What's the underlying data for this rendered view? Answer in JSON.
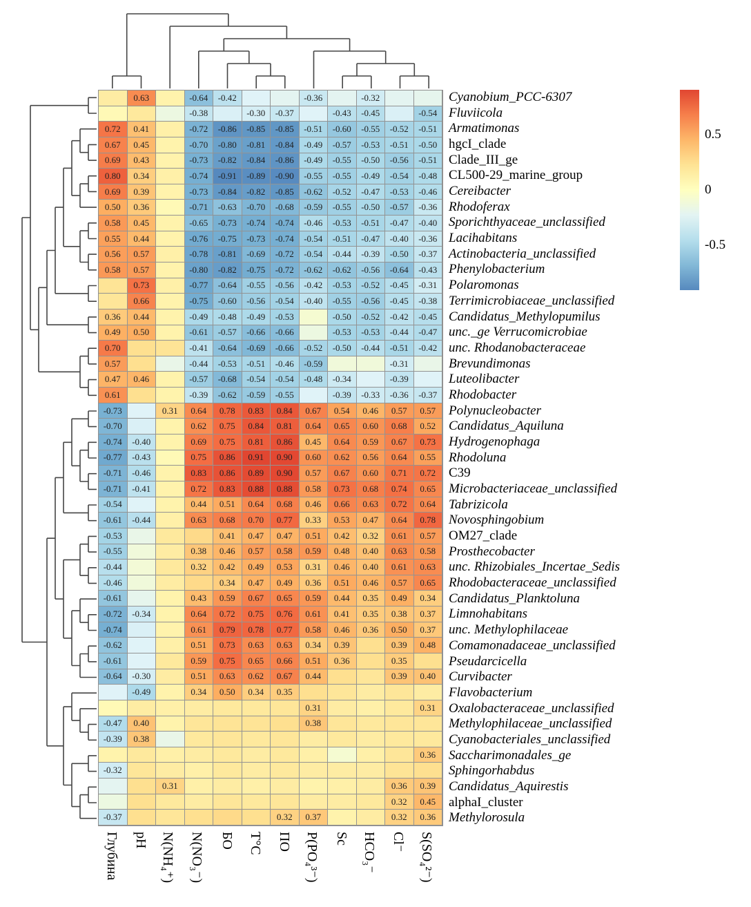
{
  "figure": {
    "background": "#ffffff",
    "blank_cells_note": "cells without printed numbers are non-significant; matrix holds approximate values used only for cell color"
  },
  "legend": {
    "vmax": 0.91,
    "vmin": -0.91,
    "ticks": [
      {
        "label": "0.5",
        "value": 0.5
      },
      {
        "label": "0",
        "value": 0
      },
      {
        "label": "-0.5",
        "value": -0.5
      }
    ]
  },
  "chart_data": {
    "type": "heatmap",
    "title": "",
    "display_threshold": 0.3,
    "colormap": {
      "stops": [
        "#d73027",
        "#f46d43",
        "#fdae61",
        "#fee090",
        "#ffffbf",
        "#e0f3f8",
        "#abd9e9",
        "#74add1",
        "#4575b4"
      ],
      "domain": [
        1,
        -1
      ]
    },
    "columns": [
      "Глубина",
      "pH",
      "N(NH₄⁺)",
      "N(NO₃⁻)",
      "БО",
      "T°C",
      "ПО",
      "P(PO₄³⁻)",
      "Sc",
      "HCO₃⁻",
      "Cl⁻",
      "S(SO₄²⁻)"
    ],
    "rows": [
      {
        "label": "Cyanobium_PCC-6307",
        "italic": true
      },
      {
        "label": "Fluviicola",
        "italic": true
      },
      {
        "label": "Armatimonas",
        "italic": true
      },
      {
        "label": "hgcI_clade",
        "italic": false
      },
      {
        "label": "Clade_III_ge",
        "italic": false
      },
      {
        "label": "CL500-29_marine_group",
        "italic": false
      },
      {
        "label": "Cereibacter",
        "italic": true
      },
      {
        "label": "Rhodoferax",
        "italic": true
      },
      {
        "label": "Sporichthyaceae_unclassified",
        "italic": true
      },
      {
        "label": "Lacihabitans",
        "italic": true
      },
      {
        "label": "Actinobacteria_unclassified",
        "italic": true
      },
      {
        "label": "Phenylobacterium",
        "italic": true
      },
      {
        "label": "Polaromonas",
        "italic": true
      },
      {
        "label": "Terrimicrobiaceae_unclassified",
        "italic": true
      },
      {
        "label": "Candidatus_Methylopumilus",
        "italic": true
      },
      {
        "label": "unc._ge Verrucomicrobiae",
        "italic": true
      },
      {
        "label": "unc. Rhodanobacteraceae",
        "italic": true
      },
      {
        "label": "Brevundimonas",
        "italic": true
      },
      {
        "label": "Luteolibacter",
        "italic": true
      },
      {
        "label": "Rhodobacter",
        "italic": true
      },
      {
        "label": "Polynucleobacter",
        "italic": true
      },
      {
        "label": "Candidatus_Aquiluna",
        "italic": true
      },
      {
        "label": "Hydrogenophaga",
        "italic": true
      },
      {
        "label": "Rhodoluna",
        "italic": true
      },
      {
        "label": "C39",
        "italic": false
      },
      {
        "label": "Microbacteriaceae_unclassified",
        "italic": true
      },
      {
        "label": "Tabrizicola",
        "italic": true
      },
      {
        "label": "Novosphingobium",
        "italic": true
      },
      {
        "label": "OM27_clade",
        "italic": false
      },
      {
        "label": "Prosthecobacter",
        "italic": true
      },
      {
        "label": "unc. Rhizobiales_Incertae_Sedis",
        "italic": true
      },
      {
        "label": "Rhodobacteraceae_unclassified",
        "italic": true
      },
      {
        "label": "Candidatus_Planktoluna",
        "italic": true
      },
      {
        "label": "Limnohabitans",
        "italic": true
      },
      {
        "label": "unc. Methylophilaceae",
        "italic": true
      },
      {
        "label": "Comamonadaceae_unclassified",
        "italic": true
      },
      {
        "label": "Pseudarcicella",
        "italic": true
      },
      {
        "label": "Curvibacter",
        "italic": true
      },
      {
        "label": "Flavobacterium",
        "italic": true
      },
      {
        "label": "Oxalobacteraceae_unclassified",
        "italic": true
      },
      {
        "label": "Methylophilaceae_unclassified",
        "italic": true
      },
      {
        "label": "Cyanobacteriales_unclassified",
        "italic": true
      },
      {
        "label": "Saccharimonadales_ge",
        "italic": true
      },
      {
        "label": "Sphingorhabdus",
        "italic": true
      },
      {
        "label": "Candidatus_Aquirestis",
        "italic": true
      },
      {
        "label": "alphaI_cluster",
        "italic": false
      },
      {
        "label": "Methylorosula",
        "italic": true
      }
    ],
    "values": [
      [
        0.15,
        0.63,
        0.1,
        -0.64,
        -0.42,
        -0.25,
        -0.22,
        -0.36,
        -0.22,
        -0.32,
        -0.22,
        -0.2
      ],
      [
        0.05,
        0.18,
        -0.15,
        -0.38,
        -0.28,
        -0.3,
        -0.37,
        -0.25,
        -0.43,
        -0.45,
        -0.28,
        -0.54
      ],
      [
        0.72,
        0.41,
        0.12,
        -0.72,
        -0.86,
        -0.85,
        -0.85,
        -0.51,
        -0.6,
        -0.55,
        -0.52,
        -0.51
      ],
      [
        0.67,
        0.45,
        0.1,
        -0.7,
        -0.8,
        -0.81,
        -0.84,
        -0.49,
        -0.57,
        -0.53,
        -0.51,
        -0.5
      ],
      [
        0.69,
        0.43,
        0.1,
        -0.73,
        -0.82,
        -0.84,
        -0.86,
        -0.49,
        -0.55,
        -0.5,
        -0.56,
        -0.51
      ],
      [
        0.8,
        0.34,
        0.12,
        -0.74,
        -0.91,
        -0.89,
        -0.9,
        -0.55,
        -0.55,
        -0.49,
        -0.54,
        -0.48
      ],
      [
        0.69,
        0.39,
        0.1,
        -0.73,
        -0.84,
        -0.82,
        -0.85,
        -0.62,
        -0.52,
        -0.47,
        -0.53,
        -0.46
      ],
      [
        0.5,
        0.36,
        0.05,
        -0.71,
        -0.63,
        -0.7,
        -0.68,
        -0.59,
        -0.55,
        -0.5,
        -0.57,
        -0.36
      ],
      [
        0.58,
        0.45,
        0.1,
        -0.65,
        -0.73,
        -0.74,
        -0.74,
        -0.46,
        -0.53,
        -0.51,
        -0.47,
        -0.4
      ],
      [
        0.55,
        0.44,
        0.1,
        -0.76,
        -0.75,
        -0.73,
        -0.74,
        -0.54,
        -0.51,
        -0.47,
        -0.4,
        -0.36
      ],
      [
        0.56,
        0.57,
        0.12,
        -0.78,
        -0.81,
        -0.69,
        -0.72,
        -0.54,
        -0.44,
        -0.39,
        -0.5,
        -0.37
      ],
      [
        0.58,
        0.57,
        0.1,
        -0.8,
        -0.82,
        -0.75,
        -0.72,
        -0.62,
        -0.62,
        -0.56,
        -0.64,
        -0.43
      ],
      [
        0.22,
        0.73,
        0.12,
        -0.77,
        -0.64,
        -0.55,
        -0.56,
        -0.42,
        -0.53,
        -0.52,
        -0.45,
        -0.31
      ],
      [
        0.2,
        0.66,
        0.1,
        -0.75,
        -0.6,
        -0.56,
        -0.54,
        -0.4,
        -0.55,
        -0.56,
        -0.45,
        -0.38
      ],
      [
        0.36,
        0.44,
        0.1,
        -0.49,
        -0.48,
        -0.49,
        -0.53,
        -0.08,
        -0.5,
        -0.52,
        -0.42,
        -0.45
      ],
      [
        0.49,
        0.5,
        0.1,
        -0.61,
        -0.57,
        -0.66,
        -0.66,
        -0.15,
        -0.53,
        -0.53,
        -0.44,
        -0.47
      ],
      [
        0.7,
        0.25,
        0.22,
        -0.41,
        -0.64,
        -0.69,
        -0.66,
        -0.52,
        -0.5,
        -0.44,
        -0.51,
        -0.42
      ],
      [
        0.57,
        0.25,
        -0.18,
        -0.44,
        -0.53,
        -0.51,
        -0.46,
        -0.59,
        -0.12,
        -0.12,
        -0.31,
        -0.18
      ],
      [
        0.47,
        0.46,
        0.1,
        -0.57,
        -0.68,
        -0.54,
        -0.54,
        -0.48,
        -0.34,
        -0.25,
        -0.39,
        -0.25
      ],
      [
        0.61,
        0.25,
        0.1,
        -0.39,
        -0.62,
        -0.59,
        -0.55,
        -0.25,
        -0.39,
        -0.33,
        -0.36,
        -0.37
      ],
      [
        -0.73,
        -0.25,
        0.31,
        0.64,
        0.78,
        0.83,
        0.84,
        0.67,
        0.54,
        0.46,
        0.57,
        0.57
      ],
      [
        -0.7,
        -0.28,
        0.1,
        0.62,
        0.75,
        0.84,
        0.81,
        0.64,
        0.65,
        0.6,
        0.68,
        0.52
      ],
      [
        -0.74,
        -0.4,
        0.1,
        0.69,
        0.75,
        0.81,
        0.86,
        0.45,
        0.64,
        0.59,
        0.67,
        0.73
      ],
      [
        -0.77,
        -0.43,
        0.05,
        0.75,
        0.86,
        0.91,
        0.9,
        0.6,
        0.62,
        0.56,
        0.64,
        0.55
      ],
      [
        -0.71,
        -0.46,
        0.1,
        0.83,
        0.86,
        0.89,
        0.9,
        0.57,
        0.67,
        0.6,
        0.71,
        0.72
      ],
      [
        -0.71,
        -0.41,
        0.1,
        0.72,
        0.83,
        0.88,
        0.88,
        0.58,
        0.73,
        0.68,
        0.74,
        0.65
      ],
      [
        -0.54,
        -0.25,
        0.1,
        0.44,
        0.51,
        0.64,
        0.68,
        0.46,
        0.66,
        0.63,
        0.72,
        0.64
      ],
      [
        -0.61,
        -0.44,
        0.12,
        0.63,
        0.68,
        0.7,
        0.77,
        0.33,
        0.53,
        0.47,
        0.64,
        0.78
      ],
      [
        -0.53,
        -0.18,
        0.18,
        0.28,
        0.41,
        0.47,
        0.47,
        0.51,
        0.42,
        0.32,
        0.61,
        0.57
      ],
      [
        -0.55,
        -0.12,
        0.15,
        0.38,
        0.46,
        0.57,
        0.58,
        0.59,
        0.48,
        0.4,
        0.63,
        0.58
      ],
      [
        -0.44,
        -0.1,
        0.18,
        0.32,
        0.42,
        0.49,
        0.53,
        0.31,
        0.46,
        0.4,
        0.61,
        0.63
      ],
      [
        -0.46,
        -0.12,
        0.15,
        0.28,
        0.34,
        0.47,
        0.49,
        0.36,
        0.51,
        0.46,
        0.57,
        0.65
      ],
      [
        -0.61,
        -0.2,
        0.1,
        0.43,
        0.59,
        0.67,
        0.65,
        0.59,
        0.44,
        0.35,
        0.49,
        0.34
      ],
      [
        -0.72,
        -0.34,
        0.1,
        0.64,
        0.72,
        0.75,
        0.76,
        0.61,
        0.41,
        0.35,
        0.38,
        0.37
      ],
      [
        -0.74,
        -0.28,
        0.1,
        0.61,
        0.79,
        0.78,
        0.77,
        0.58,
        0.46,
        0.36,
        0.5,
        0.37
      ],
      [
        -0.62,
        -0.25,
        0.12,
        0.51,
        0.73,
        0.63,
        0.63,
        0.34,
        0.39,
        0.25,
        0.39,
        0.48
      ],
      [
        -0.61,
        -0.25,
        0.18,
        0.59,
        0.75,
        0.65,
        0.66,
        0.51,
        0.36,
        0.25,
        0.35,
        0.25
      ],
      [
        -0.64,
        -0.3,
        0.15,
        0.51,
        0.63,
        0.62,
        0.67,
        0.44,
        0.25,
        0.2,
        0.39,
        0.4
      ],
      [
        -0.25,
        -0.49,
        0.1,
        0.34,
        0.5,
        0.34,
        0.35,
        0.25,
        0.2,
        0.15,
        0.2,
        0.15
      ],
      [
        0.05,
        0.15,
        0.12,
        0.15,
        0.18,
        0.18,
        0.2,
        0.31,
        0.15,
        0.12,
        0.18,
        0.31
      ],
      [
        -0.47,
        0.4,
        0.1,
        0.2,
        0.22,
        0.22,
        0.25,
        0.38,
        0.2,
        0.18,
        0.2,
        0.2
      ],
      [
        -0.39,
        0.38,
        -0.18,
        0.18,
        0.2,
        0.18,
        0.2,
        0.15,
        0.18,
        0.15,
        0.18,
        0.18
      ],
      [
        0.1,
        0.18,
        0.12,
        0.15,
        0.18,
        0.15,
        0.18,
        0.12,
        -0.08,
        0.12,
        0.2,
        0.36
      ],
      [
        -0.32,
        0.2,
        0.15,
        0.12,
        0.18,
        0.15,
        0.18,
        0.15,
        0.15,
        0.15,
        0.22,
        0.25
      ],
      [
        -0.22,
        0.25,
        0.31,
        0.12,
        0.15,
        0.12,
        0.15,
        0.1,
        0.12,
        0.15,
        0.36,
        0.39
      ],
      [
        -0.15,
        0.25,
        0.18,
        0.15,
        0.2,
        0.18,
        0.2,
        0.15,
        0.15,
        0.18,
        0.32,
        0.45
      ],
      [
        -0.37,
        0.25,
        0.2,
        0.25,
        0.28,
        0.25,
        0.32,
        0.37,
        0.1,
        0.15,
        0.32,
        0.36
      ]
    ],
    "row_tree": [
      [
        [
          0,
          1
        ],
        [
          [
            [
              [
                [
                  [
                    2,
                    [
                      3,
                      4
                    ]
                  ],
                  [
                    [
                      5,
                      6
                    ],
                    7
                  ]
                ],
                [
                  [
                    8,
                    9
                  ],
                  [
                    10,
                    11
                  ]
                ]
              ],
              [
                12,
                13
              ]
            ],
            [
              14,
              15
            ]
          ],
          [
            [
              16,
              17
            ],
            [
              18,
              19
            ]
          ]
        ]
      ],
      [
        [
          [
            [
              [
                20,
                21
              ],
              [
                [
                  22,
                  23
                ],
                [
                  24,
                  25
                ]
              ]
            ],
            [
              26,
              27
            ]
          ],
          [
            [
              [
                28,
                29
              ],
              [
                30,
                31
              ]
            ],
            [
              [
                32,
                [
                  33,
                  34
                ]
              ],
              [
                [
                  35,
                  36
                ],
                37
              ]
            ]
          ]
        ],
        [
          [
            38,
            [
              39,
              [
                40,
                41
              ]
            ]
          ],
          [
            [
              42,
              43
            ],
            [
              [
                44,
                45
              ],
              46
            ]
          ]
        ]
      ]
    ],
    "col_tree": [
      [
        0,
        1
      ],
      [
        2,
        [
          [
            3,
            [
              4,
              [
                5,
                6
              ]
            ]
          ],
          [
            7,
            [
              [
                8,
                9
              ],
              [
                10,
                11
              ]
            ]
          ]
        ]
      ]
    ]
  }
}
